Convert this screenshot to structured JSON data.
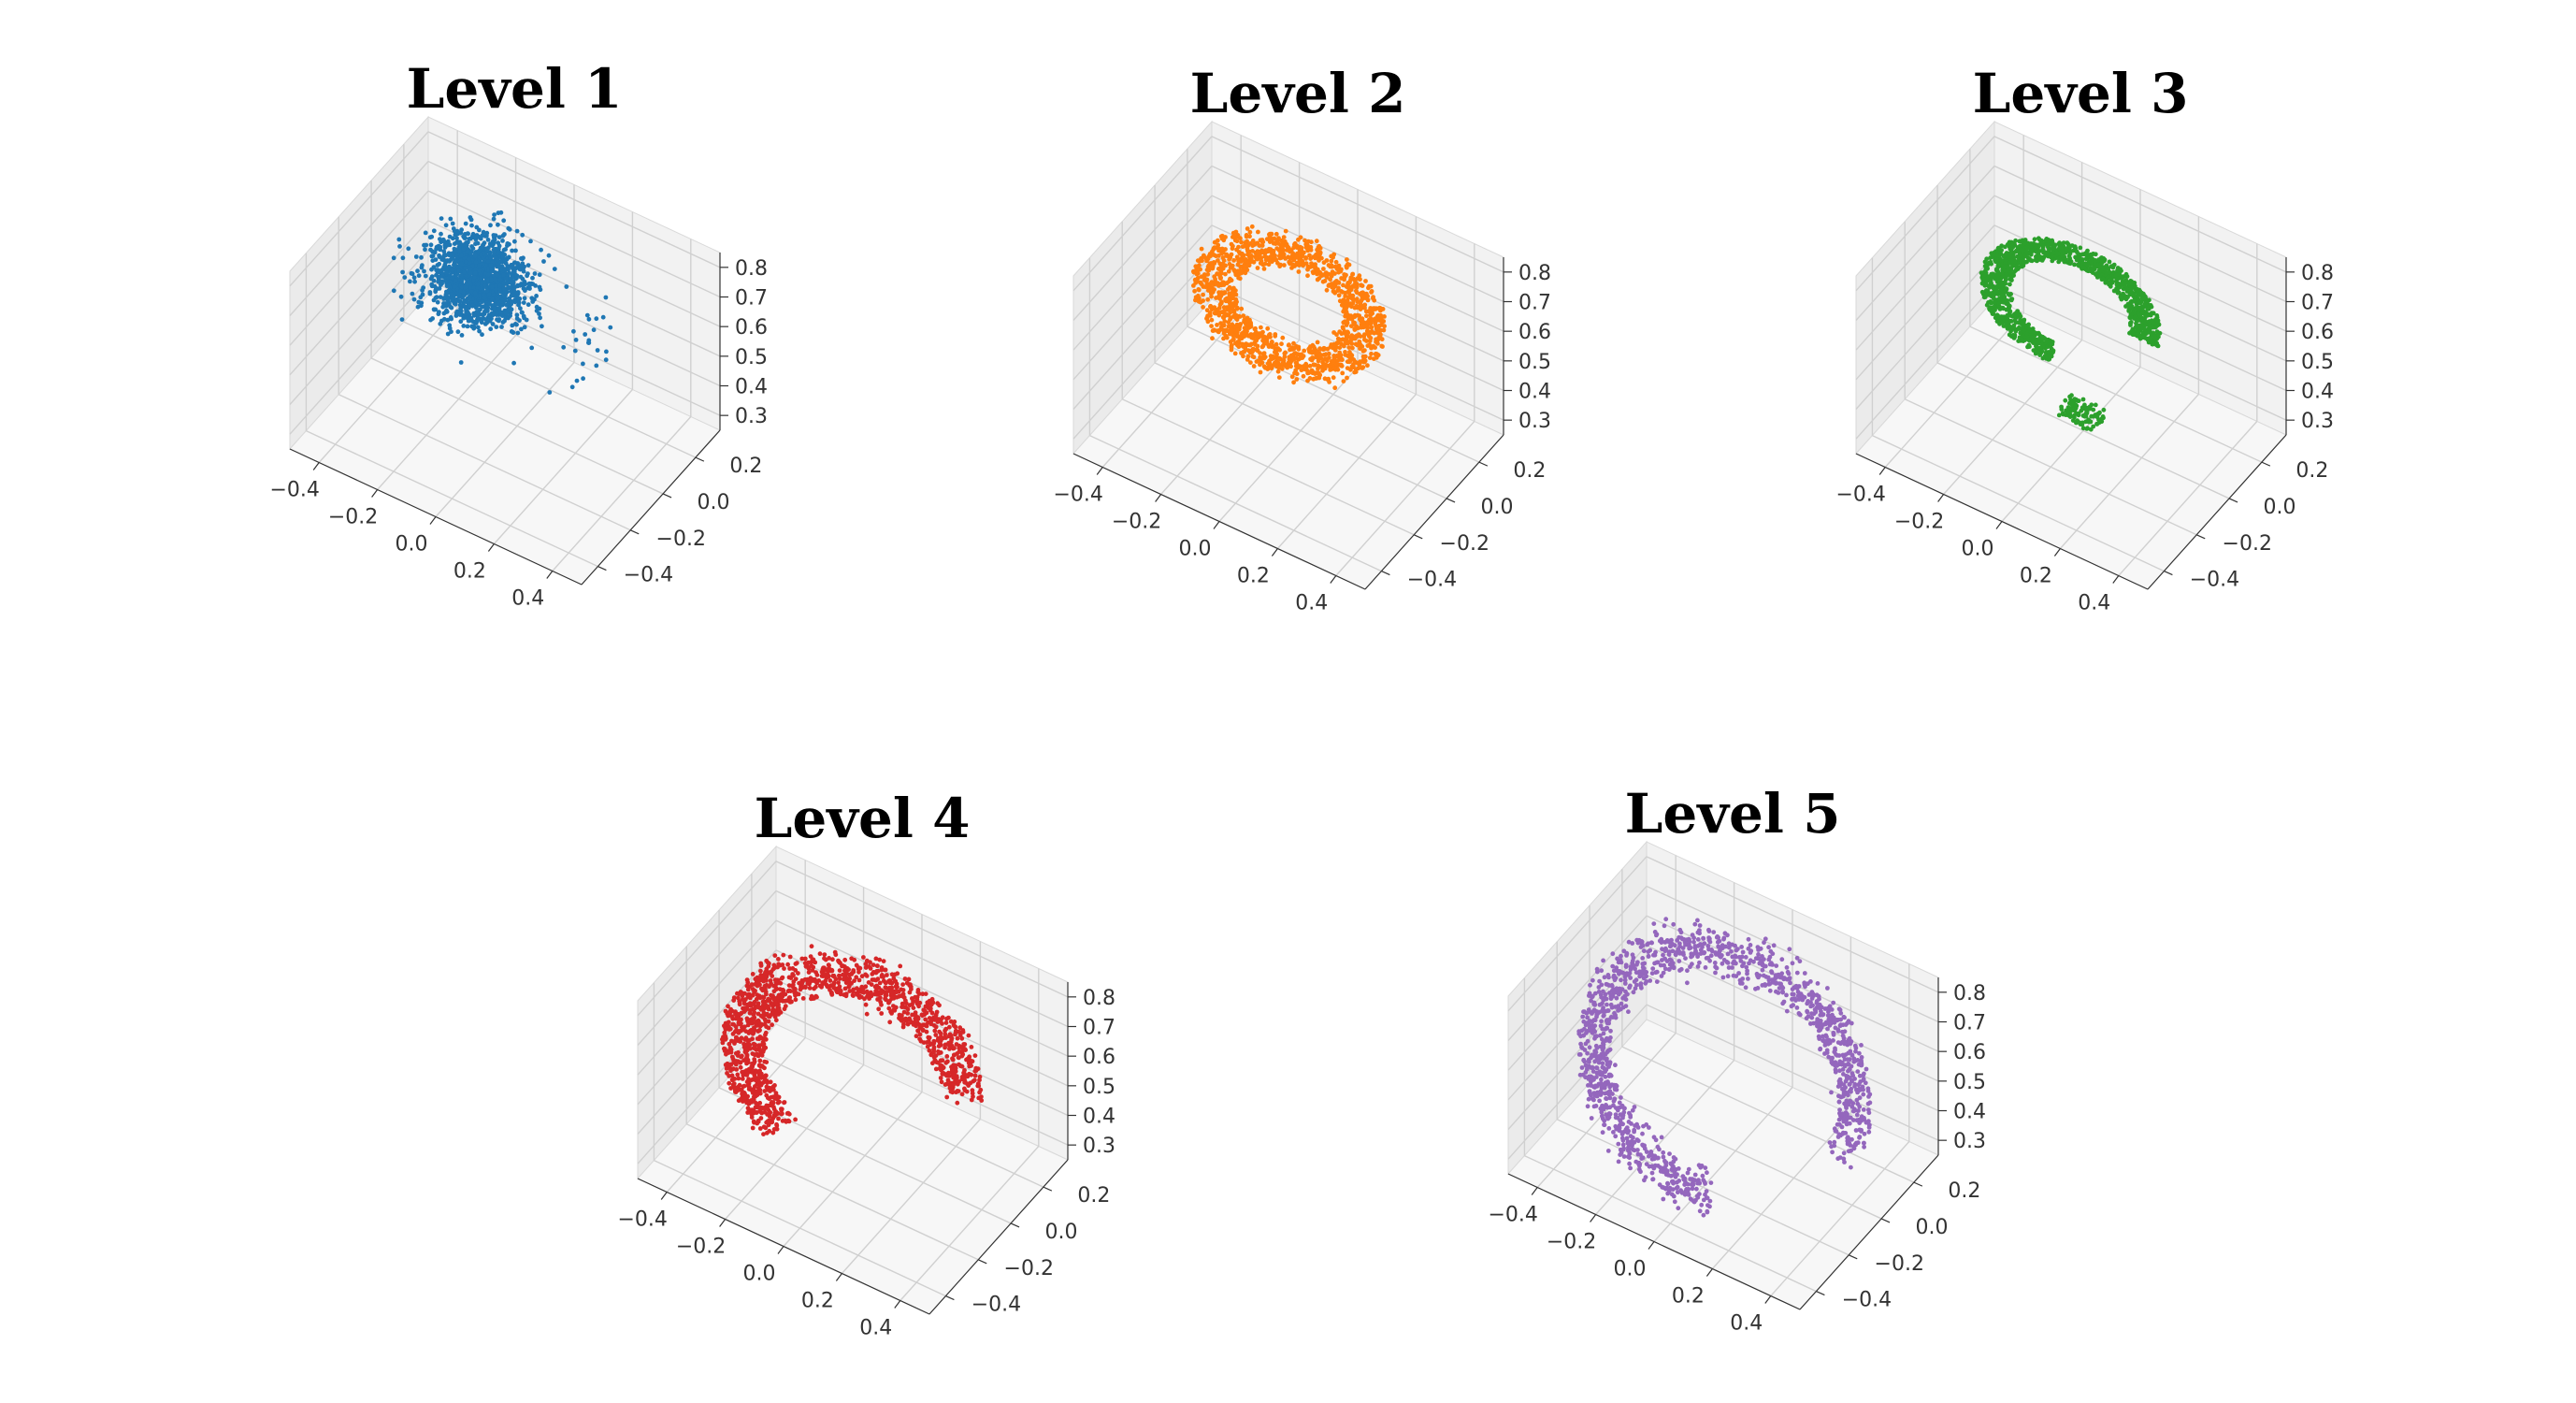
{
  "chart_data": [
    {
      "type": "scatter3d",
      "title": "Level 1",
      "color": "#1f77b4",
      "shape": "fragment",
      "xlim": [
        -0.5,
        0.5
      ],
      "ylim": [
        -0.5,
        0.35
      ],
      "zlim": [
        0.25,
        0.85
      ],
      "xticks": [
        "−0.4",
        "−0.2",
        "0.0",
        "0.2",
        "0.4"
      ],
      "yticks": [
        "−0.4",
        "−0.2",
        "0.0",
        "0.2"
      ],
      "zticks": [
        "0.3",
        "0.4",
        "0.5",
        "0.6",
        "0.7",
        "0.8"
      ]
    },
    {
      "type": "scatter3d",
      "title": "Level 2",
      "color": "#ff7f0e",
      "shape": "ring",
      "xlim": [
        -0.5,
        0.5
      ],
      "ylim": [
        -0.5,
        0.35
      ],
      "zlim": [
        0.25,
        0.85
      ],
      "xticks": [
        "−0.4",
        "−0.2",
        "0.0",
        "0.2",
        "0.4"
      ],
      "yticks": [
        "−0.4",
        "−0.2",
        "0.0",
        "0.2"
      ],
      "zticks": [
        "0.3",
        "0.4",
        "0.5",
        "0.6",
        "0.7",
        "0.8"
      ]
    },
    {
      "type": "scatter3d",
      "title": "Level 3",
      "color": "#2ca02c",
      "shape": "hook",
      "xlim": [
        -0.5,
        0.5
      ],
      "ylim": [
        -0.5,
        0.35
      ],
      "zlim": [
        0.25,
        0.85
      ],
      "xticks": [
        "−0.4",
        "−0.2",
        "0.0",
        "0.2",
        "0.4"
      ],
      "yticks": [
        "−0.4",
        "−0.2",
        "0.0",
        "0.2"
      ],
      "zticks": [
        "0.3",
        "0.4",
        "0.5",
        "0.6",
        "0.7",
        "0.8"
      ]
    },
    {
      "type": "scatter3d",
      "title": "Level 4",
      "color": "#d62728",
      "shape": "crescent",
      "xlim": [
        -0.5,
        0.5
      ],
      "ylim": [
        -0.5,
        0.35
      ],
      "zlim": [
        0.25,
        0.85
      ],
      "xticks": [
        "−0.4",
        "−0.2",
        "0.0",
        "0.2",
        "0.4"
      ],
      "yticks": [
        "−0.4",
        "−0.2",
        "0.0",
        "0.2"
      ],
      "zticks": [
        "0.3",
        "0.4",
        "0.5",
        "0.6",
        "0.7",
        "0.8"
      ]
    },
    {
      "type": "scatter3d",
      "title": "Level 5",
      "color": "#9467bd",
      "shape": "arc",
      "xlim": [
        -0.5,
        0.5
      ],
      "ylim": [
        -0.5,
        0.35
      ],
      "zlim": [
        0.25,
        0.85
      ],
      "xticks": [
        "−0.4",
        "−0.2",
        "0.0",
        "0.2",
        "0.4"
      ],
      "yticks": [
        "−0.4",
        "−0.2",
        "0.0",
        "0.2"
      ],
      "zticks": [
        "0.3",
        "0.4",
        "0.5",
        "0.6",
        "0.7",
        "0.8"
      ]
    }
  ]
}
